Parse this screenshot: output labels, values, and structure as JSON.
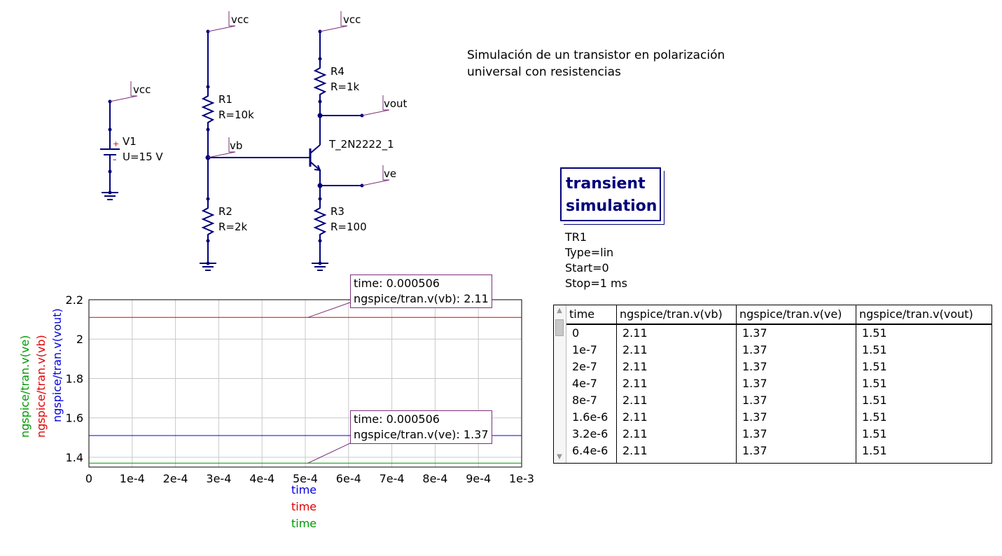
{
  "schematic": {
    "power_labels": [
      "vcc",
      "vcc",
      "vcc"
    ],
    "nodes": {
      "vb": "vb",
      "vout": "vout",
      "ve": "ve"
    },
    "source": {
      "name": "V1",
      "value": "U=15 V",
      "plus": "+",
      "minus": "–"
    },
    "resistors": [
      {
        "name": "R1",
        "value": "R=10k"
      },
      {
        "name": "R2",
        "value": "R=2k"
      },
      {
        "name": "R3",
        "value": "R=100"
      },
      {
        "name": "R4",
        "value": "R=1k"
      }
    ],
    "transistor": {
      "name": "T_2N2222_1"
    },
    "wire_color": "#00007a",
    "label_color": "#7a2f7a"
  },
  "title_text": {
    "line1": "Simulación de un transistor en polarización",
    "line2": "universal con resistencias"
  },
  "simulation": {
    "box_line1": "transient",
    "box_line2": "simulation",
    "name": "TR1",
    "type": "Type=lin",
    "start": "Start=0",
    "stop": "Stop=1 ms"
  },
  "plot": {
    "ylabels": [
      {
        "text": "ngspice/tran.v(ve)",
        "color": "#009900"
      },
      {
        "text": "ngspice/tran.v(vb)",
        "color": "#e00000"
      },
      {
        "text": "ngspice/tran.v(vout)",
        "color": "#0000e0"
      }
    ],
    "xlabels": [
      {
        "text": "time",
        "color": "#0000e0"
      },
      {
        "text": "time",
        "color": "#e00000"
      },
      {
        "text": "time",
        "color": "#009900"
      }
    ],
    "markers": [
      {
        "line1": "time: 0.000506",
        "line2": "ngspice/tran.v(vb): 2.11"
      },
      {
        "line1": "time: 0.000506",
        "line2": "ngspice/tran.v(ve): 1.37"
      }
    ]
  },
  "chart_data": {
    "type": "line",
    "x": [
      0,
      0.001
    ],
    "xlim": [
      0,
      0.001
    ],
    "ylim": [
      1.35,
      2.2
    ],
    "xticks": [
      "0",
      "1e-4",
      "2e-4",
      "3e-4",
      "4e-4",
      "5e-4",
      "6e-4",
      "7e-4",
      "8e-4",
      "9e-4",
      "1e-3"
    ],
    "xtick_values": [
      0,
      0.0001,
      0.0002,
      0.0003,
      0.0004,
      0.0005,
      0.0006,
      0.0007,
      0.0008,
      0.0009,
      0.001
    ],
    "yticks": [
      "1.4",
      "1.6",
      "1.8",
      "2",
      "2.2"
    ],
    "ytick_values": [
      1.4,
      1.6,
      1.8,
      2.0,
      2.2
    ],
    "grid": true,
    "series": [
      {
        "name": "ngspice/tran.v(vb)",
        "color": "#e00000",
        "values": [
          2.11,
          2.11
        ]
      },
      {
        "name": "ngspice/tran.v(vout)",
        "color": "#0000e0",
        "values": [
          1.51,
          1.51
        ]
      },
      {
        "name": "ngspice/tran.v(ve)",
        "color": "#009900",
        "values": [
          1.37,
          1.37
        ]
      }
    ]
  },
  "table": {
    "headers": [
      "time",
      "ngspice/tran.v(vb)",
      "ngspice/tran.v(ve)",
      "ngspice/tran.v(vout)"
    ],
    "rows": [
      [
        "0",
        "2.11",
        "1.37",
        "1.51"
      ],
      [
        "1e-7",
        "2.11",
        "1.37",
        "1.51"
      ],
      [
        "2e-7",
        "2.11",
        "1.37",
        "1.51"
      ],
      [
        "4e-7",
        "2.11",
        "1.37",
        "1.51"
      ],
      [
        "8e-7",
        "2.11",
        "1.37",
        "1.51"
      ],
      [
        "1.6e-6",
        "2.11",
        "1.37",
        "1.51"
      ],
      [
        "3.2e-6",
        "2.11",
        "1.37",
        "1.51"
      ],
      [
        "6.4e-6",
        "2.11",
        "1.37",
        "1.51"
      ]
    ],
    "scroll_up": "▲",
    "scroll_down": "▼"
  }
}
